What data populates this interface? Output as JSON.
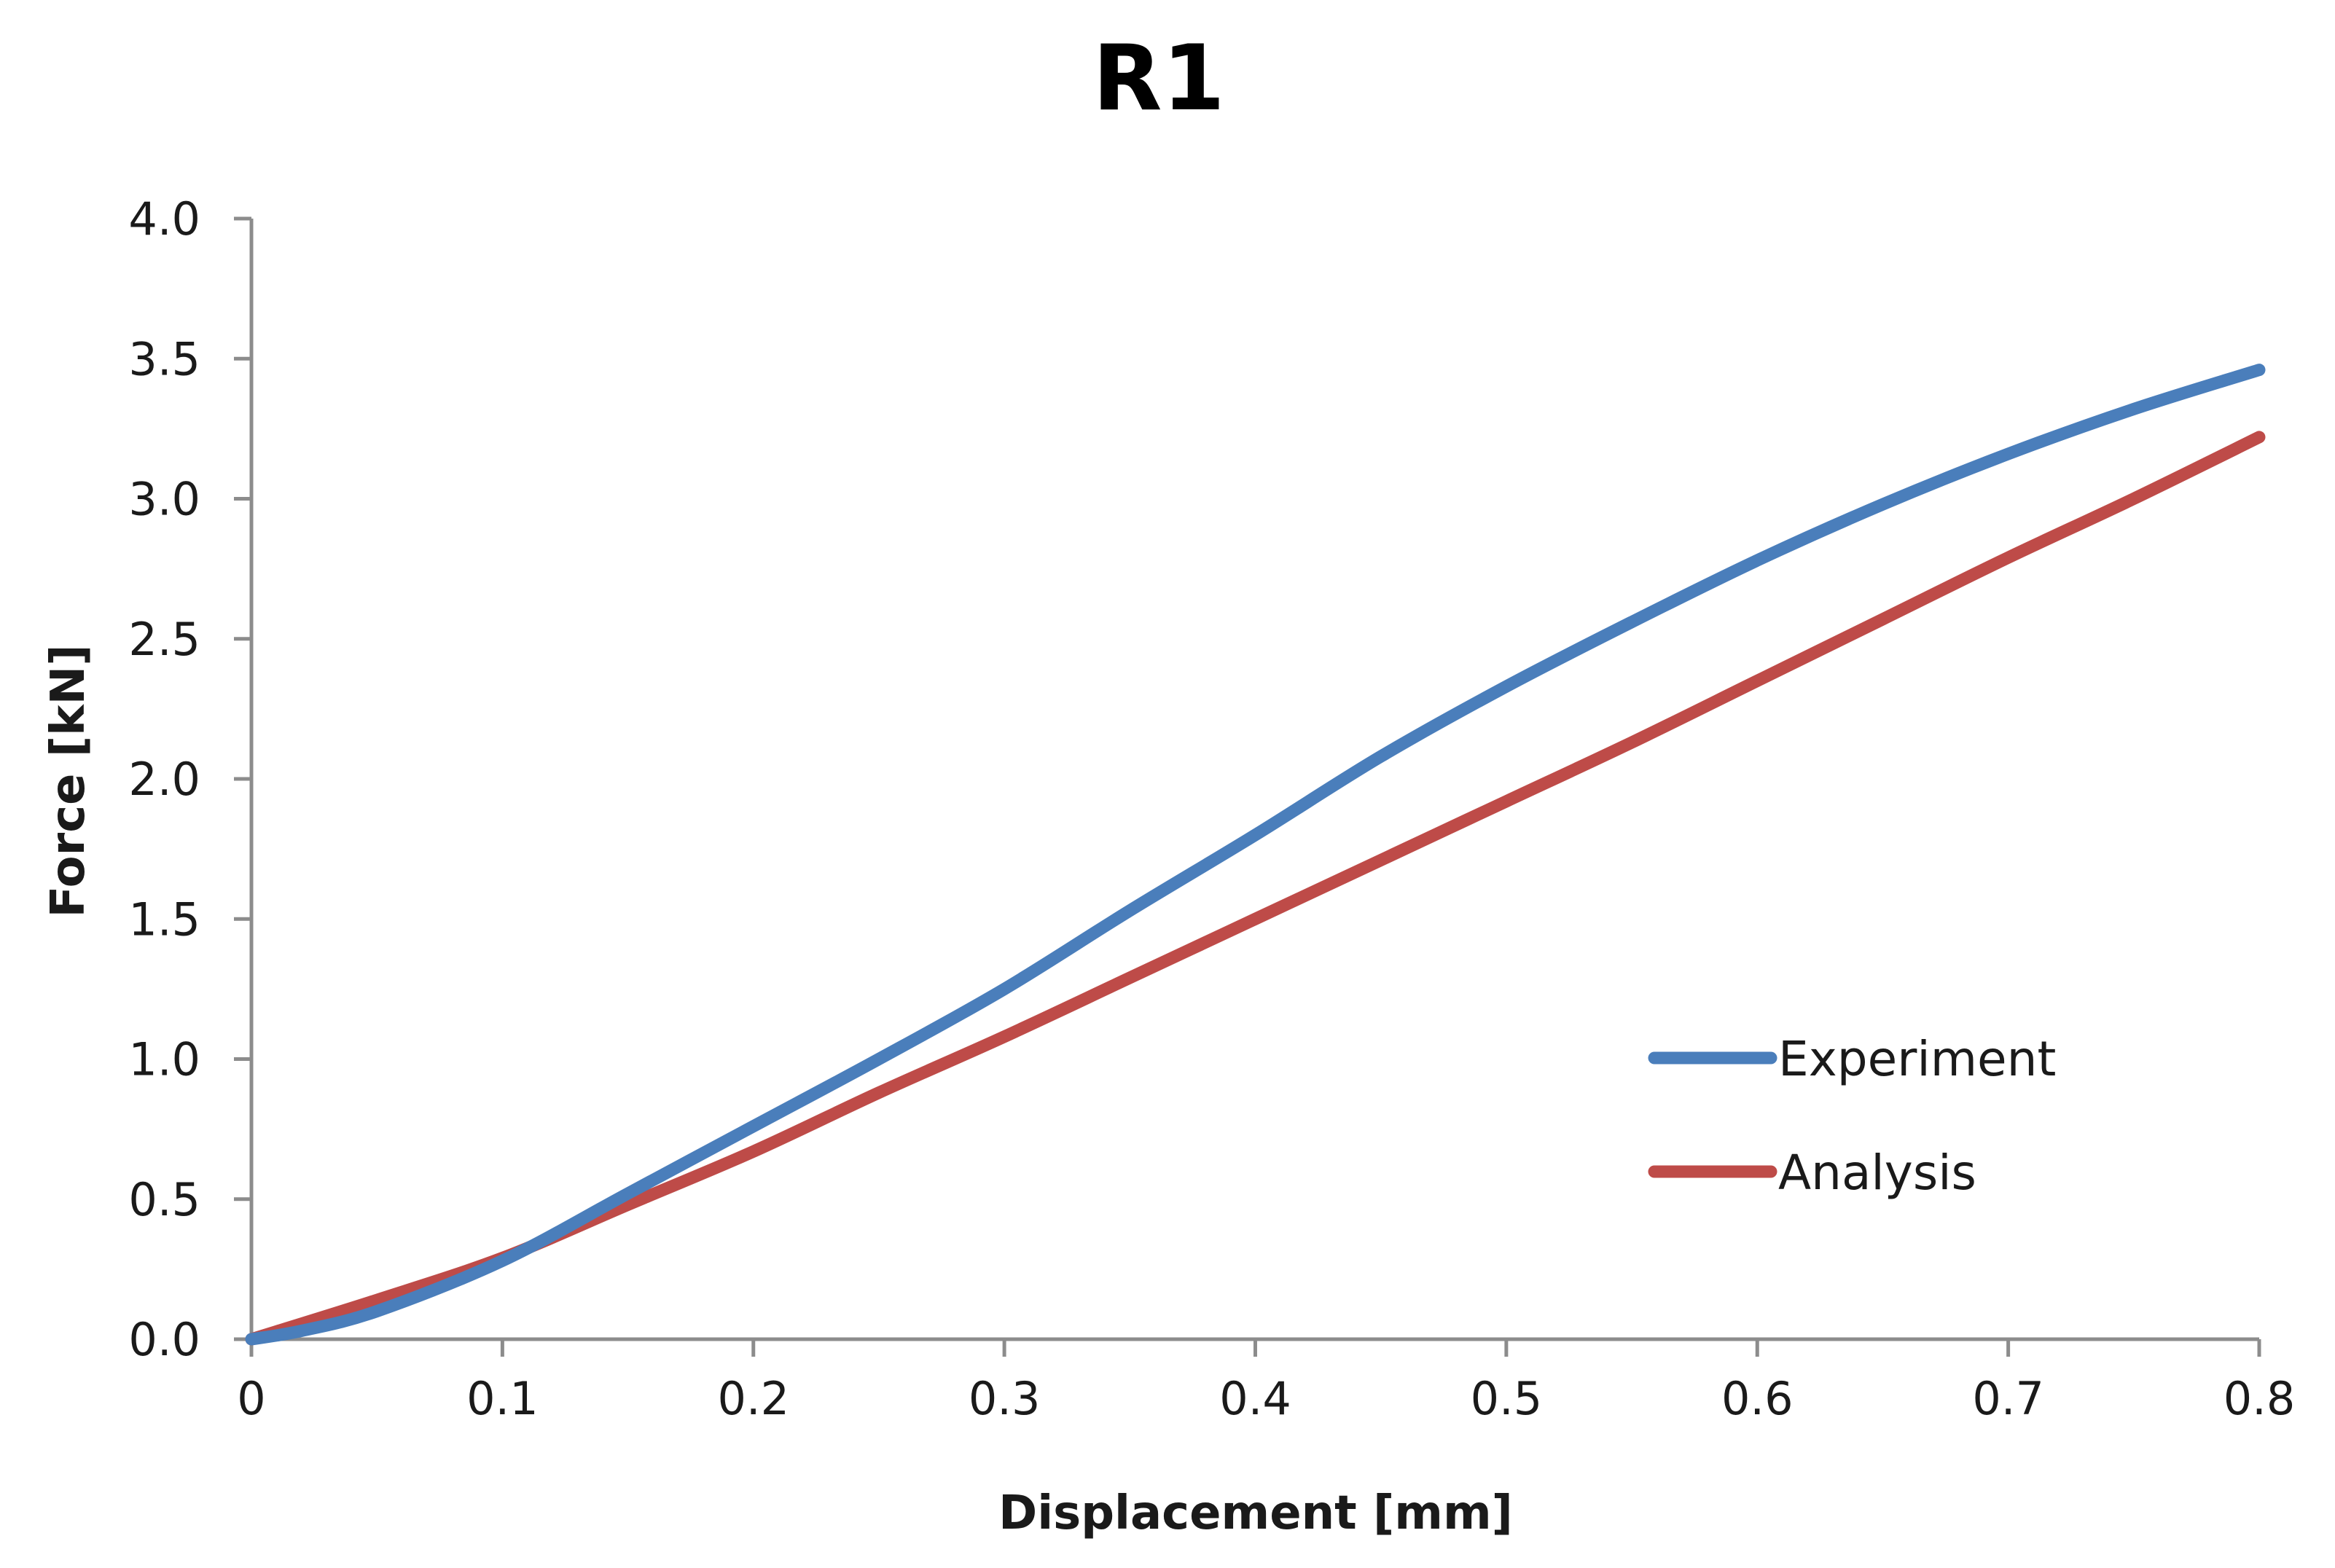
{
  "chart_data": {
    "type": "line",
    "title": "R1",
    "xlabel": "Displacement [mm]",
    "ylabel": "Force [kN]",
    "xlim": [
      0,
      0.8
    ],
    "ylim": [
      0,
      4.0
    ],
    "x_ticks": [
      0,
      0.1,
      0.2,
      0.3,
      0.4,
      0.5,
      0.6,
      0.7,
      0.8
    ],
    "x_tick_labels": [
      "0",
      "0.1",
      "0.2",
      "0.3",
      "0.4",
      "0.5",
      "0.6",
      "0.7",
      "0.8"
    ],
    "y_ticks": [
      0,
      0.5,
      1.0,
      1.5,
      2.0,
      2.5,
      3.0,
      3.5,
      4.0
    ],
    "y_tick_labels": [
      "0.0",
      "0.5",
      "1.0",
      "1.5",
      "2.0",
      "2.5",
      "3.0",
      "3.5",
      "4.0"
    ],
    "grid": false,
    "legend_position": "right",
    "series": [
      {
        "name": "Experiment",
        "color": "#4a7ebb",
        "x": [
          0,
          0.02,
          0.05,
          0.1,
          0.15,
          0.2,
          0.25,
          0.3,
          0.35,
          0.4,
          0.45,
          0.5,
          0.55,
          0.6,
          0.65,
          0.7,
          0.75,
          0.8
        ],
        "y": [
          0,
          0.03,
          0.1,
          0.28,
          0.52,
          0.76,
          1.0,
          1.25,
          1.53,
          1.8,
          2.08,
          2.33,
          2.56,
          2.78,
          2.98,
          3.16,
          3.32,
          3.46
        ]
      },
      {
        "name": "Analysis",
        "color": "#be4b48",
        "x": [
          0,
          0.05,
          0.1,
          0.15,
          0.2,
          0.25,
          0.3,
          0.35,
          0.4,
          0.45,
          0.5,
          0.55,
          0.6,
          0.65,
          0.7,
          0.75,
          0.8
        ],
        "y": [
          0,
          0.14,
          0.29,
          0.48,
          0.67,
          0.88,
          1.08,
          1.29,
          1.5,
          1.71,
          1.92,
          2.13,
          2.35,
          2.57,
          2.79,
          3.0,
          3.22
        ]
      }
    ]
  }
}
